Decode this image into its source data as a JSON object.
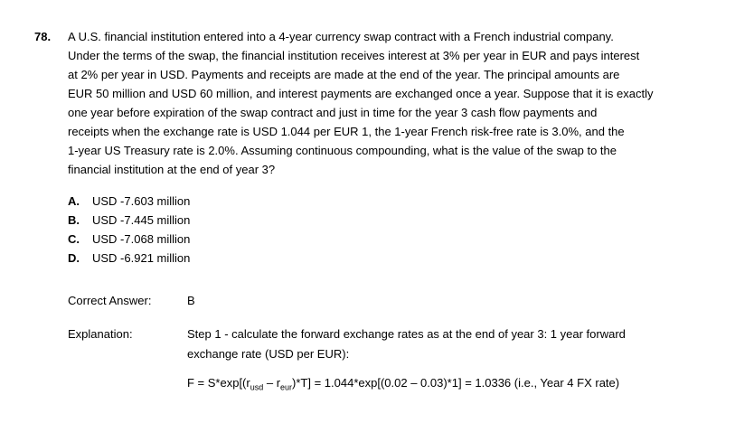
{
  "question": {
    "number": "78.",
    "lines": [
      "A U.S. financial institution entered into a 4-year currency swap contract with a French industrial company.",
      "Under the terms of the swap, the financial institution receives interest at 3% per year in EUR and pays interest",
      "at 2% per year in USD. Payments and receipts are made at the end of the year. The principal amounts are",
      "EUR 50 million and USD 60 million, and interest payments are exchanged once a year. Suppose that it is exactly",
      "one year before expiration of the swap contract and just in time for the year 3 cash flow payments and",
      "receipts when the exchange rate is USD 1.044 per EUR 1, the 1-year French risk-free rate is 3.0%, and the",
      "1-year US Treasury rate is 2.0%. Assuming continuous compounding, what is the value of the swap to the",
      "financial institution at the end of year 3?"
    ]
  },
  "options": [
    {
      "letter": "A.",
      "text": "USD -7.603 million"
    },
    {
      "letter": "B.",
      "text": "USD -7.445 million"
    },
    {
      "letter": "C.",
      "text": "USD -7.068 million"
    },
    {
      "letter": "D.",
      "text": "USD -6.921 million"
    }
  ],
  "answer": {
    "label": "Correct Answer:",
    "value": "B"
  },
  "explanation": {
    "label": "Explanation:",
    "step_lines": [
      "Step 1 - calculate the forward exchange rates as at the end of year 3: 1 year forward",
      "exchange rate (USD per EUR):"
    ],
    "formula": {
      "prefix": "F = S*exp[(r",
      "sub1": "usd",
      "mid": " – r",
      "sub2": "eur",
      "suffix": ")*T] = 1.044*exp[(0.02 – 0.03)*1] = 1.0336 (i.e., Year 4 FX rate)"
    }
  },
  "colors": {
    "background": "#ffffff",
    "text": "#000000"
  }
}
